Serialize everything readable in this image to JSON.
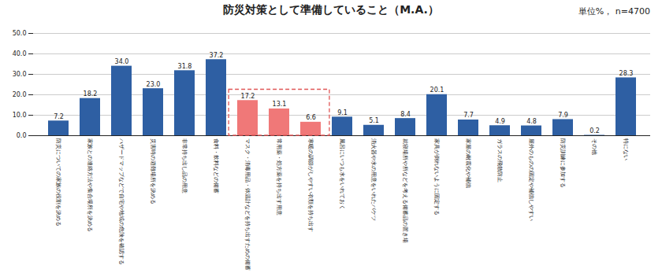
{
  "chart_data": {
    "type": "bar",
    "title": "防災対策として準備していること（M.A.）",
    "subtitle": "単位%，  n=4700",
    "categories": [
      "防災についての家族の役割を決める",
      "家族との連絡方法や集合場所を決める",
      "ハザードマップなどで自宅や地域の危険を確認する",
      "災害時の避難場所を決める",
      "非常持ち出し品の用意",
      "食料・飲料などの備蓄",
      "マスク・消毒用品・体温計などを持ち出すための備蓄",
      "常用薬・処方薬を持ち出す用意",
      "寒暖の調節がしやすい衣類を持ち出す",
      "風呂にいつも水をいれておく",
      "消火器や水の用意をいれたバケツ",
      "就寝場所や所などを考える備蓄品の置き場",
      "家具が倒れないように固定する",
      "家屋の耐震化や補強",
      "ガラスの飛散防止",
      "屋外のものの固定や補強しやすい",
      "防災訓練に参加する",
      "その他",
      "特にない"
    ],
    "values": [
      7.2,
      18.2,
      34.0,
      23.0,
      31.8,
      37.2,
      17.2,
      13.1,
      6.6,
      9.1,
      5.1,
      8.4,
      20.1,
      7.7,
      4.9,
      4.8,
      7.9,
      0.2,
      28.3
    ],
    "value_labels": [
      "7.2",
      "18.2",
      "34.0",
      "23.0",
      "31.8",
      "37.2",
      "17.2",
      "13.1",
      "6.6",
      "9.1",
      "5.1",
      "8.4",
      "20.1",
      "7.7",
      "4.9",
      "4.8",
      "7.9",
      "0.2",
      "28.3"
    ],
    "data_labels": true,
    "colors": [
      "#2e5fa3",
      "#2e5fa3",
      "#2e5fa3",
      "#2e5fa3",
      "#2e5fa3",
      "#2e5fa3",
      "#f07878",
      "#f07878",
      "#f07878",
      "#2e5fa3",
      "#2e5fa3",
      "#2e5fa3",
      "#2e5fa3",
      "#2e5fa3",
      "#2e5fa3",
      "#2e5fa3",
      "#2e5fa3",
      "#2e5fa3",
      "#2e5fa3"
    ],
    "ylim": [
      0,
      50
    ],
    "yticks": [
      {
        "value": 0,
        "label": "0.0"
      },
      {
        "value": 10,
        "label": "10.0"
      },
      {
        "value": 20,
        "label": "20.0"
      },
      {
        "value": 30,
        "label": "30.0"
      },
      {
        "value": 40,
        "label": "40.0"
      },
      {
        "value": 50,
        "label": "50.0"
      }
    ],
    "grid": true,
    "highlight_box": {
      "categories": [
        "マスク・消毒用品・体温計などを持ち出すための備蓄",
        "寒暖の調節がしやすい衣類を持ち出す"
      ],
      "ylim": [
        0,
        22.5
      ],
      "color": "#e05555",
      "line_style": "dashed"
    }
  }
}
